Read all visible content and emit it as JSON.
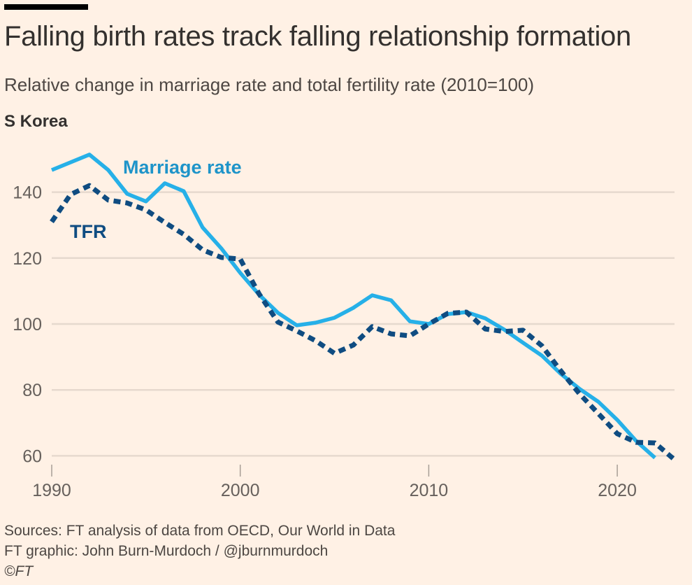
{
  "header": {
    "title": "Falling birth rates track falling relationship formation",
    "subtitle": "Relative change in marriage rate and total fertility rate (2010=100)",
    "panel_label": "S Korea"
  },
  "footer": {
    "sources": "Sources: FT analysis of data from OECD, Our World in Data",
    "credit": "FT graphic: John Burn-Murdoch / @jburnmurdoch",
    "copyright": "©FT"
  },
  "chart_data": {
    "type": "line",
    "title": "Falling birth rates track falling relationship formation",
    "subtitle": "Relative change in marriage rate and total fertility rate (2010=100)",
    "panel": "S Korea",
    "xlabel": "",
    "ylabel": "",
    "xlim": [
      1990,
      2023
    ],
    "ylim": [
      57,
      152
    ],
    "x_ticks": [
      1990,
      2000,
      2010,
      2020
    ],
    "x_tick_labels": [
      "1990",
      "2000",
      "2010",
      "2020"
    ],
    "y_ticks": [
      60,
      80,
      100,
      120,
      140
    ],
    "y_tick_labels": [
      "60",
      "80",
      "100",
      "120",
      "140"
    ],
    "grid": "horizontal",
    "legend": "inline-labels",
    "series": [
      {
        "name": "Marriage rate",
        "label": "Marriage rate",
        "color": "#26b0e8",
        "style": "solid",
        "x": [
          1990,
          1992,
          1993,
          1994,
          1995,
          1996,
          1997,
          1998,
          1999,
          2000,
          2001,
          2002,
          2003,
          2004,
          2005,
          2006,
          2007,
          2008,
          2009,
          2010,
          2011,
          2012,
          2013,
          2014,
          2015,
          2016,
          2017,
          2018,
          2019,
          2020,
          2021,
          2022
        ],
        "values": [
          146.7,
          151.4,
          146.7,
          139.5,
          137.2,
          142.7,
          140.3,
          129.3,
          122.9,
          115.5,
          108.9,
          103.4,
          99.6,
          100.4,
          101.9,
          104.9,
          108.7,
          107.2,
          100.8,
          100,
          103,
          103.6,
          101.7,
          98.3,
          94.3,
          90.4,
          84.9,
          80.3,
          76.4,
          70.9,
          64.5,
          59.4
        ]
      },
      {
        "name": "TFR",
        "label": "TFR",
        "color": "#0f4c81",
        "style": "dotted",
        "x": [
          1990,
          1991,
          1992,
          1993,
          1994,
          1995,
          1996,
          1997,
          1998,
          1999,
          2000,
          2001,
          2002,
          2003,
          2004,
          2005,
          2006,
          2007,
          2008,
          2009,
          2010,
          2011,
          2012,
          2013,
          2014,
          2015,
          2016,
          2017,
          2018,
          2019,
          2020,
          2021,
          2022,
          2023
        ],
        "values": [
          131,
          139.3,
          142,
          137.6,
          136.7,
          134.6,
          130.8,
          127.2,
          122.5,
          120.2,
          119.7,
          109.1,
          100.6,
          97.9,
          94.9,
          91.1,
          93.6,
          99.2,
          97,
          96.4,
          100,
          103.2,
          103.6,
          98.5,
          97.7,
          98.1,
          93.4,
          85.8,
          78.8,
          72.8,
          66.7,
          64.1,
          63.9,
          59
        ]
      }
    ]
  }
}
